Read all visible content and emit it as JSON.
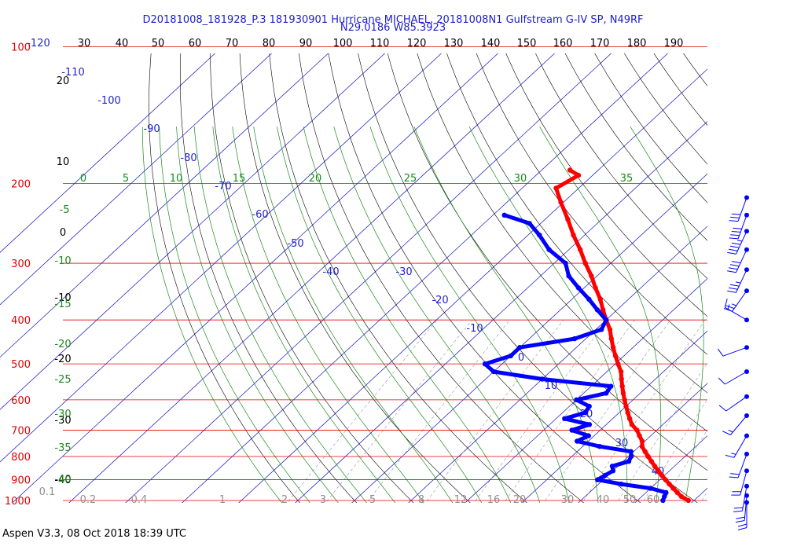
{
  "title": {
    "line1": "D20181008_181928_P.3 181930901 Hurricane MICHAEL, 20181008N1 Gulfstream G-IV SP, N49RF",
    "line2": "N29.0186 W85.3923"
  },
  "footer": "Aspen V3.3, 08 Oct 2018  18:39 UTC",
  "colors": {
    "pressure": "#e00000",
    "temperature": "#ff0000",
    "dewpoint": "#0000ff",
    "isotherm": "#1010c0",
    "dry_adiabat": "#000000",
    "moist_adiabat": "#1a8a1a",
    "mixing_ratio": "#999999"
  },
  "chart_data": {
    "type": "skew-t",
    "pressure_labels": [
      "100",
      "200",
      "300",
      "400",
      "500",
      "600",
      "700",
      "800",
      "900",
      "1000"
    ],
    "pressure_values": [
      100,
      200,
      300,
      400,
      500,
      600,
      700,
      800,
      900,
      1000
    ],
    "top_temp_labels": [
      "-120",
      "30",
      "40",
      "50",
      "60",
      "70",
      "80",
      "90",
      "100",
      "110",
      "120",
      "130",
      "140",
      "150",
      "160",
      "170",
      "180",
      "190"
    ],
    "isotherm_labels": [
      {
        "text": "-110",
        "t": -110
      },
      {
        "text": "-100",
        "t": -100
      },
      {
        "text": "-90",
        "t": -90
      },
      {
        "text": "-80",
        "t": -80
      },
      {
        "text": "-70",
        "t": -70
      },
      {
        "text": "-60",
        "t": -60
      },
      {
        "text": "-50",
        "t": -50
      },
      {
        "text": "-40",
        "t": -40
      },
      {
        "text": "-30",
        "t": -30
      },
      {
        "text": "-20",
        "t": -20
      },
      {
        "text": "-10",
        "t": -10
      },
      {
        "text": "0",
        "t": 0
      },
      {
        "text": "10",
        "t": 10
      },
      {
        "text": "20",
        "t": 20
      },
      {
        "text": "30",
        "t": 30
      },
      {
        "text": "40",
        "t": 40
      }
    ],
    "dry_adiabat_labels": [
      "20",
      "10",
      "0",
      "-10",
      "-20",
      "-30",
      "-40"
    ],
    "moist_adiabat_labels": [
      "0",
      "5",
      "10",
      "15",
      "20",
      "25",
      "30",
      "35",
      "-5",
      "-10",
      "-15",
      "-20",
      "-25",
      "-30",
      "-35",
      "-40"
    ],
    "mixing_ratio_labels": [
      "0.1",
      "0.2",
      "0.4",
      "1",
      "2",
      "3",
      "5",
      "8",
      "12",
      "16",
      "20",
      "30",
      "40",
      "50",
      "60"
    ],
    "series": [
      {
        "name": "",
        "kind": "temperature",
        "points": [
          {
            "p": 1000,
            "t": 29.0
          },
          {
            "p": 980,
            "t": 27.0
          },
          {
            "p": 960,
            "t": 25.5
          },
          {
            "p": 940,
            "t": 24.0
          },
          {
            "p": 920,
            "t": 22.5
          },
          {
            "p": 900,
            "t": 21.0
          },
          {
            "p": 880,
            "t": 19.5
          },
          {
            "p": 860,
            "t": 18.0
          },
          {
            "p": 840,
            "t": 16.5
          },
          {
            "p": 820,
            "t": 15.0
          },
          {
            "p": 800,
            "t": 13.5
          },
          {
            "p": 780,
            "t": 12.0
          },
          {
            "p": 760,
            "t": 10.5
          },
          {
            "p": 740,
            "t": 9.5
          },
          {
            "p": 720,
            "t": 8.0
          },
          {
            "p": 700,
            "t": 6.5
          },
          {
            "p": 680,
            "t": 4.5
          },
          {
            "p": 660,
            "t": 3.0
          },
          {
            "p": 640,
            "t": 1.5
          },
          {
            "p": 620,
            "t": 0.0
          },
          {
            "p": 600,
            "t": -1.5
          },
          {
            "p": 580,
            "t": -3.0
          },
          {
            "p": 560,
            "t": -4.5
          },
          {
            "p": 540,
            "t": -6.0
          },
          {
            "p": 520,
            "t": -7.5
          },
          {
            "p": 500,
            "t": -9.5
          },
          {
            "p": 480,
            "t": -11.5
          },
          {
            "p": 460,
            "t": -13.5
          },
          {
            "p": 440,
            "t": -15.5
          },
          {
            "p": 420,
            "t": -17.5
          },
          {
            "p": 400,
            "t": -20.0
          },
          {
            "p": 380,
            "t": -22.5
          },
          {
            "p": 360,
            "t": -25.0
          },
          {
            "p": 340,
            "t": -28.0
          },
          {
            "p": 320,
            "t": -31.0
          },
          {
            "p": 300,
            "t": -34.5
          },
          {
            "p": 280,
            "t": -38.0
          },
          {
            "p": 260,
            "t": -42.0
          },
          {
            "p": 240,
            "t": -46.0
          },
          {
            "p": 220,
            "t": -50.5
          },
          {
            "p": 205,
            "t": -54.0
          },
          {
            "p": 192,
            "t": -52.5
          },
          {
            "p": 187,
            "t": -55.0
          }
        ]
      },
      {
        "name": "",
        "kind": "dewpoint",
        "points": [
          {
            "p": 1000,
            "t": 24.5
          },
          {
            "p": 980,
            "t": 24.0
          },
          {
            "p": 960,
            "t": 23.5
          },
          {
            "p": 940,
            "t": 20.0
          },
          {
            "p": 920,
            "t": 14.0
          },
          {
            "p": 900,
            "t": 9.0
          },
          {
            "p": 880,
            "t": 9.5
          },
          {
            "p": 860,
            "t": 10.0
          },
          {
            "p": 840,
            "t": 9.0
          },
          {
            "p": 820,
            "t": 11.0
          },
          {
            "p": 800,
            "t": 10.5
          },
          {
            "p": 780,
            "t": 9.5
          },
          {
            "p": 760,
            "t": 3.0
          },
          {
            "p": 740,
            "t": -2.0
          },
          {
            "p": 720,
            "t": -1.0
          },
          {
            "p": 700,
            "t": -5.0
          },
          {
            "p": 680,
            "t": -3.0
          },
          {
            "p": 660,
            "t": -8.5
          },
          {
            "p": 640,
            "t": -6.0
          },
          {
            "p": 620,
            "t": -6.5
          },
          {
            "p": 600,
            "t": -10.0
          },
          {
            "p": 580,
            "t": -6.0
          },
          {
            "p": 560,
            "t": -6.5
          },
          {
            "p": 540,
            "t": -20.0
          },
          {
            "p": 520,
            "t": -30.0
          },
          {
            "p": 500,
            "t": -33.0
          },
          {
            "p": 480,
            "t": -30.0
          },
          {
            "p": 460,
            "t": -30.0
          },
          {
            "p": 440,
            "t": -22.0
          },
          {
            "p": 420,
            "t": -19.0
          },
          {
            "p": 400,
            "t": -20.0
          },
          {
            "p": 380,
            "t": -23.5
          },
          {
            "p": 360,
            "t": -27.0
          },
          {
            "p": 340,
            "t": -31.0
          },
          {
            "p": 320,
            "t": -35.0
          },
          {
            "p": 300,
            "t": -38.0
          },
          {
            "p": 280,
            "t": -43.5
          },
          {
            "p": 260,
            "t": -48.0
          },
          {
            "p": 245,
            "t": -52.0
          },
          {
            "p": 235,
            "t": -58.0
          }
        ]
      }
    ],
    "wind_barbs": [
      {
        "p": 215,
        "speed": 30,
        "dir": 200
      },
      {
        "p": 235,
        "speed": 40,
        "dir": 200
      },
      {
        "p": 255,
        "speed": 45,
        "dir": 205
      },
      {
        "p": 280,
        "speed": 40,
        "dir": 205
      },
      {
        "p": 310,
        "speed": 35,
        "dir": 205
      },
      {
        "p": 345,
        "speed": 25,
        "dir": 215
      },
      {
        "p": 400,
        "speed": 15,
        "dir": 300
      },
      {
        "p": 460,
        "speed": 10,
        "dir": 250
      },
      {
        "p": 520,
        "speed": 10,
        "dir": 240
      },
      {
        "p": 590,
        "speed": 10,
        "dir": 235
      },
      {
        "p": 650,
        "speed": 15,
        "dir": 220
      },
      {
        "p": 720,
        "speed": 15,
        "dir": 210
      },
      {
        "p": 790,
        "speed": 20,
        "dir": 200
      },
      {
        "p": 860,
        "speed": 20,
        "dir": 195
      },
      {
        "p": 930,
        "speed": 20,
        "dir": 190
      },
      {
        "p": 975,
        "speed": 20,
        "dir": 185
      },
      {
        "p": 1010,
        "speed": 20,
        "dir": 180
      }
    ]
  }
}
